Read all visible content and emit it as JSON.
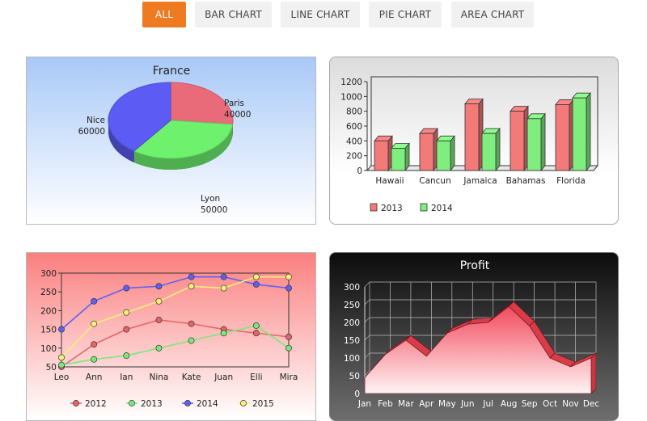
{
  "tabs": [
    {
      "label": "ALL",
      "active": true
    },
    {
      "label": "BAR CHART",
      "active": false
    },
    {
      "label": "LINE CHART",
      "active": false
    },
    {
      "label": "PIE CHART",
      "active": false
    },
    {
      "label": "AREA CHART",
      "active": false
    }
  ],
  "colors": {
    "accent": "#ee7a22",
    "red": "#f47a7a",
    "green": "#7fee7f",
    "blue": "#5f5ff7",
    "yellow": "#f5f07a"
  },
  "chart_data": [
    {
      "type": "pie",
      "title": "France",
      "slices": [
        {
          "label": "Paris",
          "value": 40000,
          "color": "#e96a78"
        },
        {
          "label": "Lyon",
          "value": 50000,
          "color": "#6ef26e"
        },
        {
          "label": "Nice",
          "value": 60000,
          "color": "#5c5cf4"
        }
      ]
    },
    {
      "type": "bar",
      "categories": [
        "Hawaii",
        "Cancun",
        "Jamaica",
        "Bahamas",
        "Florida"
      ],
      "series": [
        {
          "name": "2013",
          "values": [
            400,
            500,
            900,
            800,
            890
          ],
          "color": "#f47a7a"
        },
        {
          "name": "2014",
          "values": [
            300,
            400,
            500,
            700,
            980
          ],
          "color": "#7fee7f"
        }
      ],
      "ylim": [
        0,
        1200
      ],
      "yticks": [
        0,
        200,
        400,
        600,
        800,
        1000,
        1200
      ]
    },
    {
      "type": "line",
      "categories": [
        "Leo",
        "Ann",
        "Ian",
        "Nina",
        "Kate",
        "Juan",
        "Elli",
        "Mira"
      ],
      "series": [
        {
          "name": "2012",
          "values": [
            50,
            110,
            150,
            175,
            165,
            150,
            140,
            130
          ],
          "color": "#e86565"
        },
        {
          "name": "2013",
          "values": [
            55,
            70,
            80,
            100,
            120,
            140,
            160,
            100
          ],
          "color": "#7ce87c"
        },
        {
          "name": "2014",
          "values": [
            150,
            225,
            260,
            265,
            290,
            290,
            270,
            260
          ],
          "color": "#5f5ff7"
        },
        {
          "name": "2015",
          "values": [
            75,
            165,
            195,
            225,
            265,
            260,
            290,
            290
          ],
          "color": "#f5f07a"
        }
      ],
      "ylim": [
        50,
        300
      ],
      "yticks": [
        50,
        100,
        150,
        200,
        250,
        300
      ]
    },
    {
      "type": "area",
      "title": "Profit",
      "categories": [
        "Jan",
        "Feb",
        "Mar",
        "Apr",
        "May",
        "Jun",
        "Jul",
        "Aug",
        "Sep",
        "Oct",
        "Nov",
        "Dec"
      ],
      "values": [
        45,
        110,
        150,
        105,
        170,
        195,
        200,
        245,
        190,
        100,
        75,
        100
      ],
      "ylim": [
        0,
        300
      ],
      "yticks": [
        0,
        50,
        100,
        150,
        200,
        250,
        300
      ]
    }
  ]
}
